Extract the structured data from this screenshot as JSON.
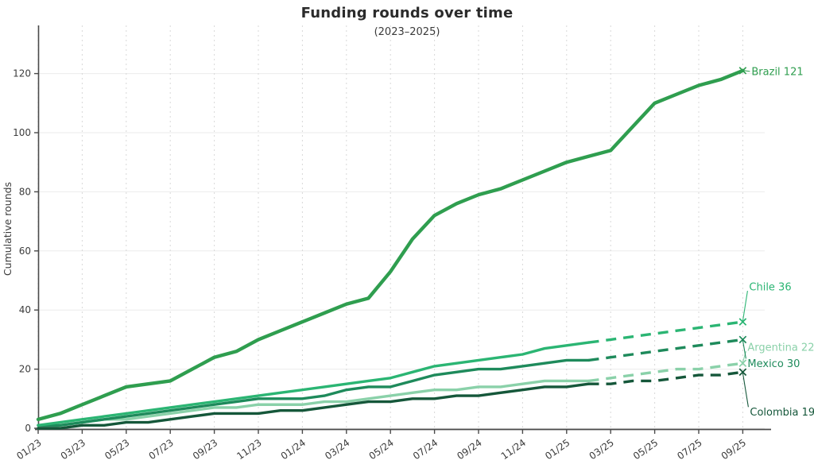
{
  "chart_data": {
    "type": "line",
    "title": "Funding rounds over time",
    "subtitle": "(2023–2025)",
    "ylabel": "Cumulative rounds",
    "xlabel": "",
    "ylim": [
      0,
      130
    ],
    "y_ticks": [
      0,
      20,
      40,
      60,
      80,
      100,
      120
    ],
    "x_tick_labels": [
      "01/23",
      "03/23",
      "05/23",
      "07/23",
      "09/23",
      "11/23",
      "01/24",
      "03/24",
      "05/24",
      "07/24",
      "09/24",
      "11/24",
      "01/25",
      "03/25",
      "05/25",
      "07/25",
      "09/25"
    ],
    "x_tick_every": 2,
    "n_points": 33,
    "forecast_start_index": 25,
    "grid": "on",
    "legend_position": "end-of-line-labels",
    "series": [
      {
        "name": "Argentina",
        "color": "#8ad1a9",
        "end_label": "Argentina 22",
        "final_value": 22,
        "dashed_forecast": true,
        "values": [
          0,
          1,
          2,
          3,
          3,
          4,
          5,
          6,
          7,
          7,
          8,
          8,
          8,
          9,
          9,
          10,
          11,
          12,
          13,
          13,
          14,
          14,
          15,
          16,
          16,
          16,
          17,
          18,
          19,
          20,
          20,
          21,
          22
        ]
      },
      {
        "name": "Mexico",
        "color": "#1e8a5b",
        "end_label": "Mexico 30",
        "final_value": 30,
        "dashed_forecast": true,
        "values": [
          1,
          1,
          2,
          3,
          4,
          5,
          6,
          7,
          8,
          9,
          10,
          10,
          10,
          11,
          13,
          14,
          14,
          16,
          18,
          19,
          20,
          20,
          21,
          22,
          23,
          23,
          24,
          25,
          26,
          27,
          28,
          29,
          30
        ]
      },
      {
        "name": "Chile",
        "color": "#2bb573",
        "end_label": "Chile 36",
        "final_value": 36,
        "dashed_forecast": true,
        "values": [
          1,
          2,
          3,
          4,
          5,
          6,
          7,
          8,
          9,
          10,
          11,
          12,
          13,
          14,
          15,
          16,
          17,
          19,
          21,
          22,
          23,
          24,
          25,
          27,
          28,
          29,
          30,
          31,
          32,
          33,
          34,
          35,
          36
        ]
      },
      {
        "name": "Colombia",
        "color": "#15573a",
        "end_label": "Colombia 19",
        "final_value": 19,
        "dashed_forecast": true,
        "values": [
          0,
          0,
          1,
          1,
          2,
          2,
          3,
          4,
          5,
          5,
          5,
          6,
          6,
          7,
          8,
          9,
          9,
          10,
          10,
          11,
          11,
          12,
          13,
          14,
          14,
          15,
          15,
          16,
          16,
          17,
          18,
          18,
          19
        ]
      },
      {
        "name": "Brazil",
        "color": "#2f9e4f",
        "end_label": "Brazil 121",
        "final_value": 121,
        "dashed_forecast": false,
        "values": [
          3,
          5,
          8,
          11,
          14,
          15,
          16,
          20,
          24,
          26,
          30,
          33,
          36,
          39,
          42,
          44,
          53,
          64,
          72,
          76,
          79,
          81,
          84,
          87,
          90,
          92,
          94,
          102,
          110,
          113,
          116,
          118,
          121
        ]
      }
    ]
  }
}
